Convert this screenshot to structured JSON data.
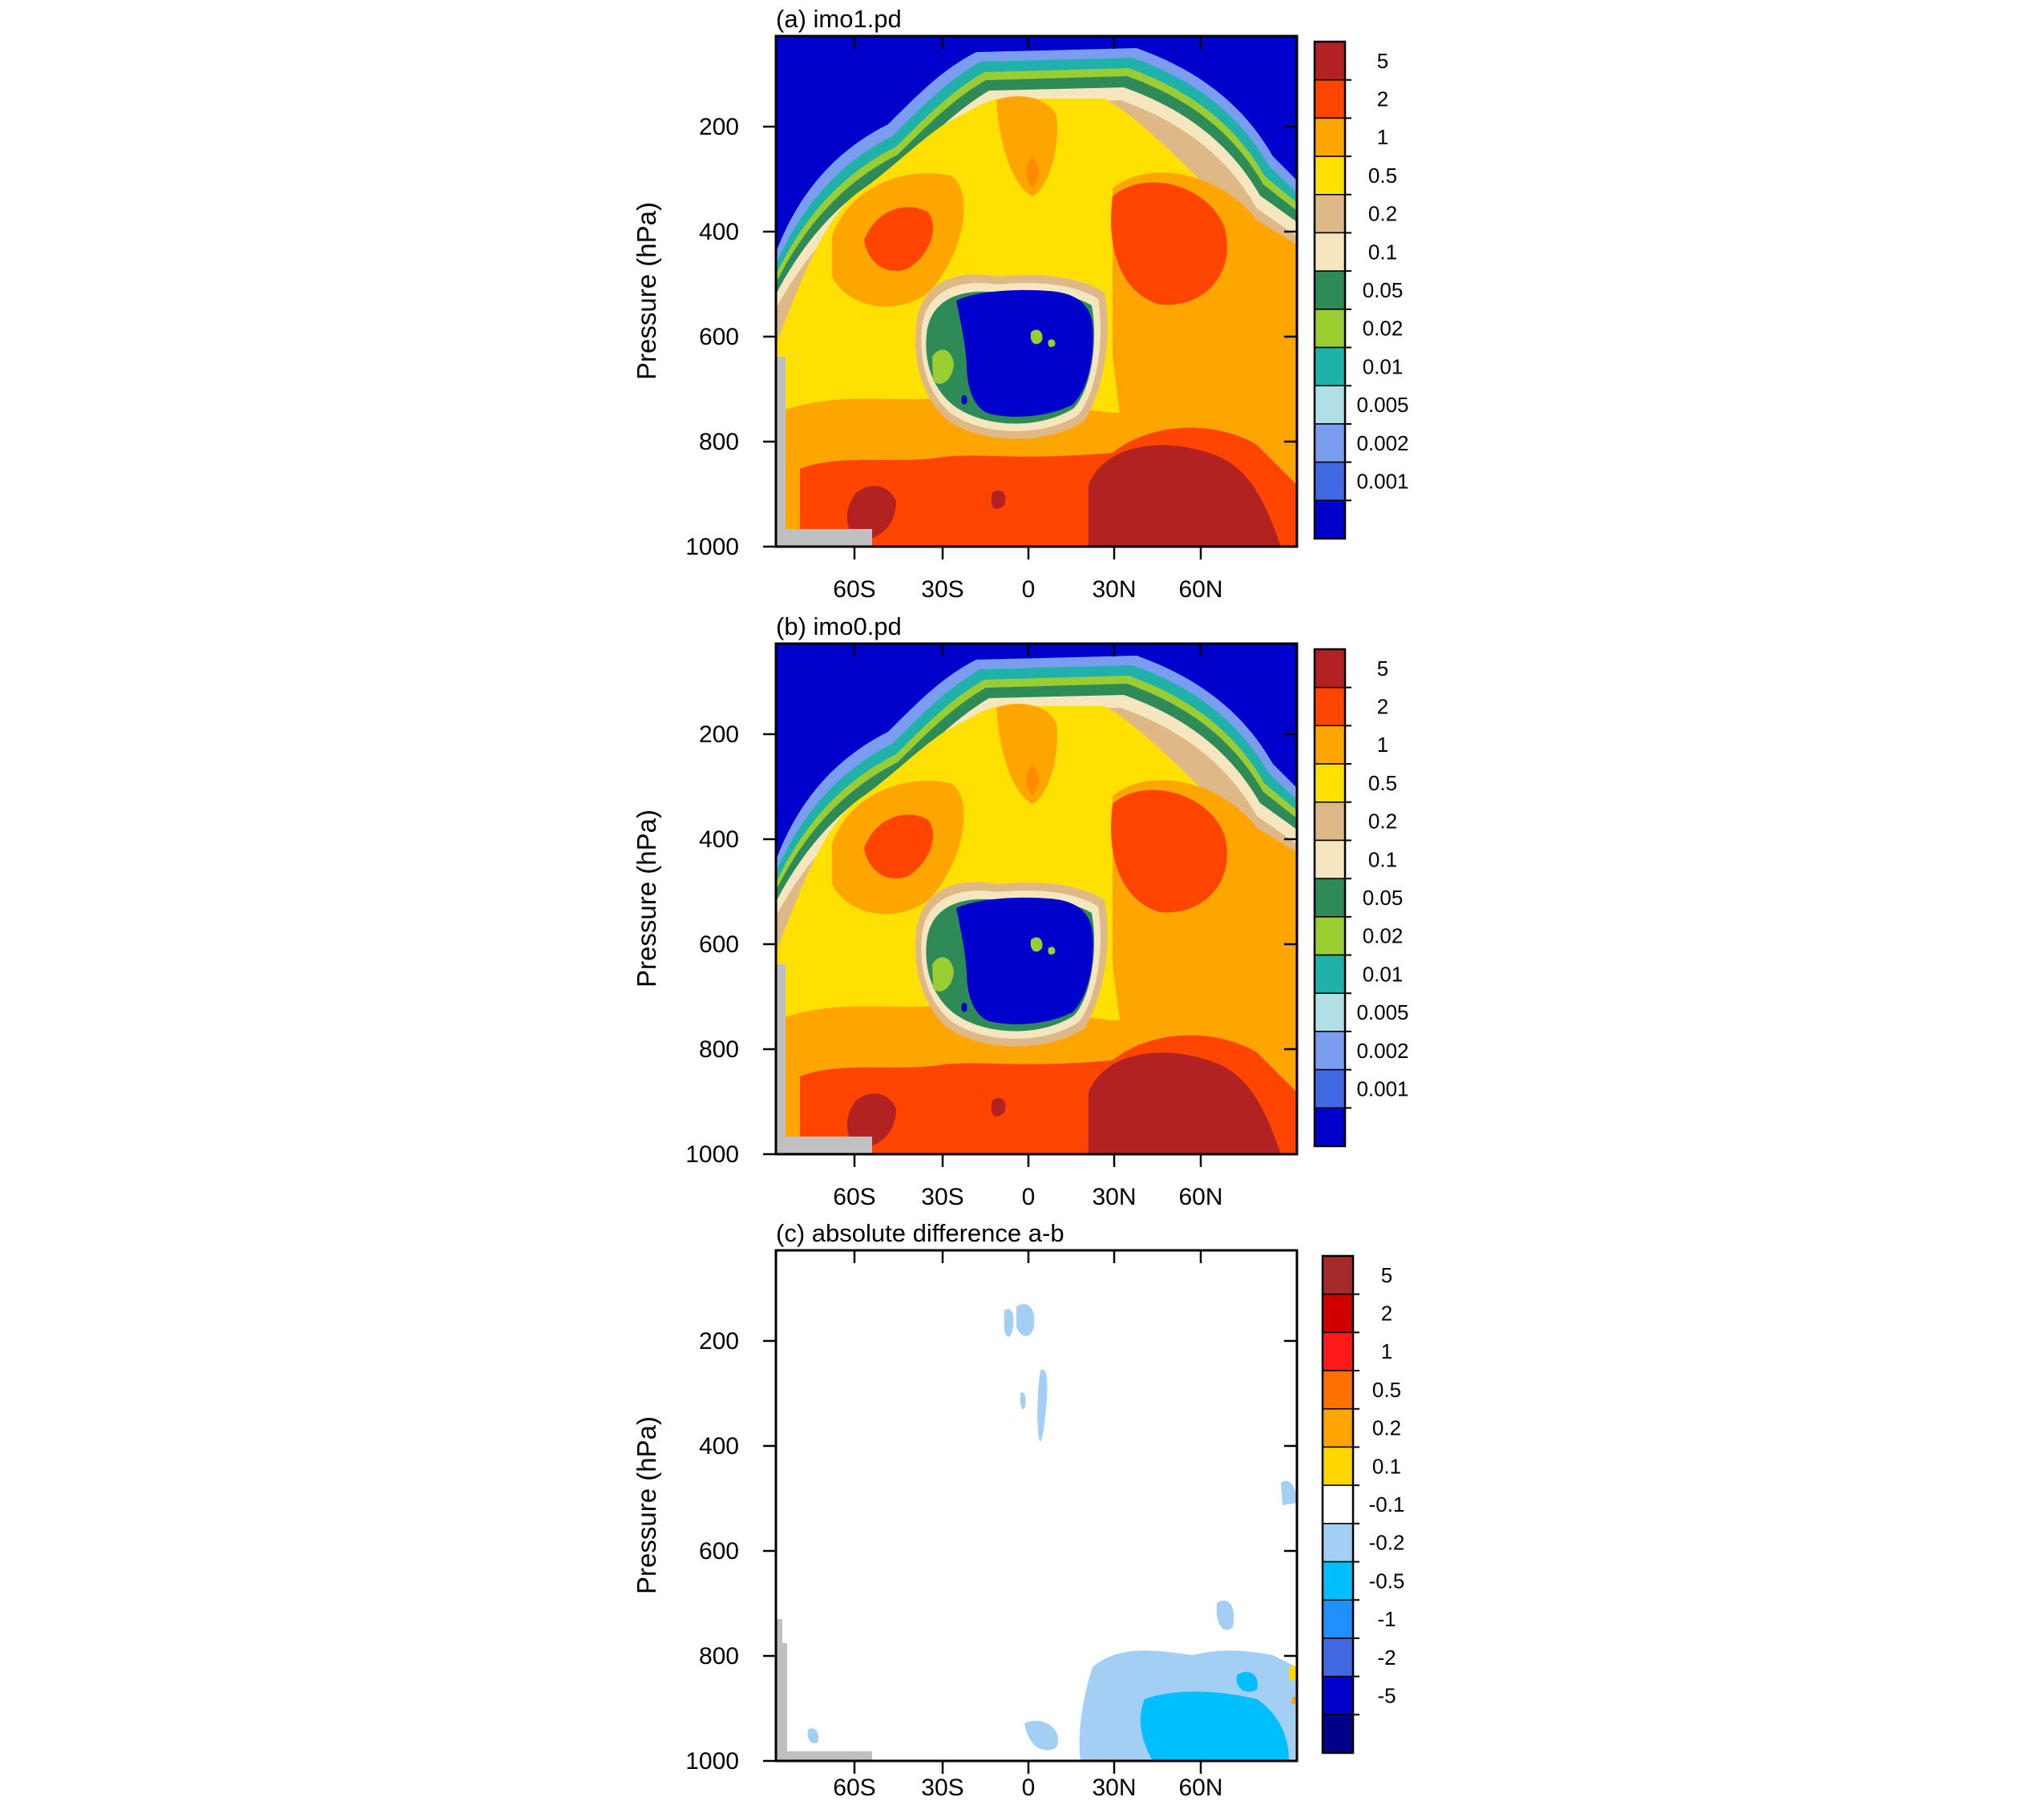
{
  "chart_data": [
    {
      "type": "heatmap",
      "title": "(a) imo1.pd",
      "ylabel": "Pressure (hPa)",
      "y_ticks": [
        "200",
        "400",
        "600",
        "800",
        "1000"
      ],
      "y_tick_values": [
        200,
        400,
        600,
        800,
        1000
      ],
      "ylim": [
        1000,
        30
      ],
      "x_ticks": [
        "60S",
        "30S",
        "0",
        "30N",
        "60N"
      ],
      "x_tick_values": [
        -60,
        -30,
        0,
        30,
        60
      ],
      "xlim": [
        -90,
        90
      ],
      "colorbar_levels": [
        "5",
        "2",
        "1",
        "0.5",
        "0.2",
        "0.1",
        "0.05",
        "0.02",
        "0.01",
        "0.005",
        "0.002",
        "0.001"
      ],
      "colorbar_colors": [
        "#b22222",
        "#ff4500",
        "#ffa500",
        "#ffe000",
        "#deb887",
        "#f5e6c0",
        "#2e8b57",
        "#9acd32",
        "#20b2aa",
        "#b0e0e6",
        "#7b9df0",
        "#4169e1",
        "#0000cd"
      ]
    },
    {
      "type": "heatmap",
      "title": "(b) imo0.pd",
      "ylabel": "Pressure (hPa)",
      "y_ticks": [
        "200",
        "400",
        "600",
        "800",
        "1000"
      ],
      "y_tick_values": [
        200,
        400,
        600,
        800,
        1000
      ],
      "ylim": [
        1000,
        30
      ],
      "x_ticks": [
        "60S",
        "30S",
        "0",
        "30N",
        "60N"
      ],
      "x_tick_values": [
        -60,
        -30,
        0,
        30,
        60
      ],
      "xlim": [
        -90,
        90
      ],
      "colorbar_levels": [
        "5",
        "2",
        "1",
        "0.5",
        "0.2",
        "0.1",
        "0.05",
        "0.02",
        "0.01",
        "0.005",
        "0.002",
        "0.001"
      ],
      "colorbar_colors": [
        "#b22222",
        "#ff4500",
        "#ffa500",
        "#ffe000",
        "#deb887",
        "#f5e6c0",
        "#2e8b57",
        "#9acd32",
        "#20b2aa",
        "#b0e0e6",
        "#7b9df0",
        "#4169e1",
        "#0000cd"
      ]
    },
    {
      "type": "heatmap",
      "title": "(c) absolute difference a-b",
      "ylabel": "Pressure (hPa)",
      "y_ticks": [
        "200",
        "400",
        "600",
        "800",
        "1000"
      ],
      "y_tick_values": [
        200,
        400,
        600,
        800,
        1000
      ],
      "ylim": [
        1000,
        30
      ],
      "x_ticks": [
        "60S",
        "30S",
        "0",
        "30N",
        "60N"
      ],
      "x_tick_values": [
        -60,
        -30,
        0,
        30,
        60
      ],
      "xlim": [
        -90,
        90
      ],
      "colorbar_levels": [
        "5",
        "2",
        "1",
        "0.5",
        "0.2",
        "0.1",
        "-0.1",
        "-0.2",
        "-0.5",
        "-1",
        "-2",
        "-5"
      ],
      "colorbar_colors": [
        "#a52a2a",
        "#d00000",
        "#ff1a1a",
        "#ff7000",
        "#ffa500",
        "#ffd700",
        "#ffffff",
        "#a4cff5",
        "#00bfff",
        "#1e90ff",
        "#4169e1",
        "#0000cd",
        "#00008b"
      ]
    }
  ]
}
